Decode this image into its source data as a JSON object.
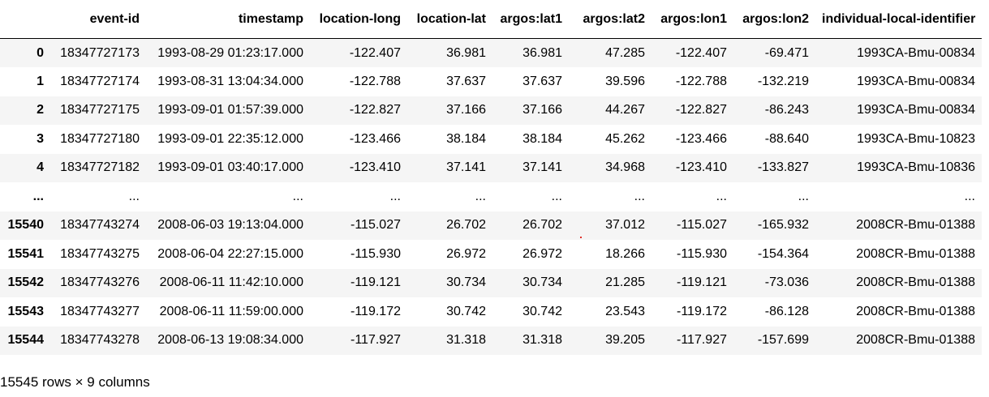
{
  "table": {
    "index_header": "",
    "columns": [
      "event-id",
      "timestamp",
      "location-long",
      "location-lat",
      "argos:lat1",
      "argos:lat2",
      "argos:lon1",
      "argos:lon2",
      "individual-local-identifier"
    ],
    "rows": [
      {
        "index": "0",
        "cells": [
          "18347727173",
          "1993-08-29 01:23:17.000",
          "-122.407",
          "36.981",
          "36.981",
          "47.285",
          "-122.407",
          "-69.471",
          "1993CA-Bmu-00834"
        ]
      },
      {
        "index": "1",
        "cells": [
          "18347727174",
          "1993-08-31 13:04:34.000",
          "-122.788",
          "37.637",
          "37.637",
          "39.596",
          "-122.788",
          "-132.219",
          "1993CA-Bmu-00834"
        ]
      },
      {
        "index": "2",
        "cells": [
          "18347727175",
          "1993-09-01 01:57:39.000",
          "-122.827",
          "37.166",
          "37.166",
          "44.267",
          "-122.827",
          "-86.243",
          "1993CA-Bmu-00834"
        ]
      },
      {
        "index": "3",
        "cells": [
          "18347727180",
          "1993-09-01 22:35:12.000",
          "-123.466",
          "38.184",
          "38.184",
          "45.262",
          "-123.466",
          "-88.640",
          "1993CA-Bmu-10823"
        ]
      },
      {
        "index": "4",
        "cells": [
          "18347727182",
          "1993-09-01 03:40:17.000",
          "-123.410",
          "37.141",
          "37.141",
          "34.968",
          "-123.410",
          "-133.827",
          "1993CA-Bmu-10836"
        ]
      },
      {
        "index": "...",
        "cells": [
          "...",
          "...",
          "...",
          "...",
          "...",
          "...",
          "...",
          "...",
          "..."
        ]
      },
      {
        "index": "15540",
        "cells": [
          "18347743274",
          "2008-06-03 19:13:04.000",
          "-115.027",
          "26.702",
          "26.702",
          "37.012",
          "-115.027",
          "-165.932",
          "2008CR-Bmu-01388"
        ]
      },
      {
        "index": "15541",
        "cells": [
          "18347743275",
          "2008-06-04 22:27:15.000",
          "-115.930",
          "26.972",
          "26.972",
          "18.266",
          "-115.930",
          "-154.364",
          "2008CR-Bmu-01388"
        ]
      },
      {
        "index": "15542",
        "cells": [
          "18347743276",
          "2008-06-11 11:42:10.000",
          "-119.121",
          "30.734",
          "30.734",
          "21.285",
          "-119.121",
          "-73.036",
          "2008CR-Bmu-01388"
        ]
      },
      {
        "index": "15543",
        "cells": [
          "18347743277",
          "2008-06-11 11:59:00.000",
          "-119.172",
          "30.742",
          "30.742",
          "23.543",
          "-119.172",
          "-86.128",
          "2008CR-Bmu-01388"
        ]
      },
      {
        "index": "15544",
        "cells": [
          "18347743278",
          "2008-06-13 19:08:34.000",
          "-117.927",
          "31.318",
          "31.318",
          "39.205",
          "-117.927",
          "-157.699",
          "2008CR-Bmu-01388"
        ]
      }
    ]
  },
  "shape_note": "15545 rows × 9 columns",
  "colors": {
    "stripe": "#f5f5f5",
    "background": "#ffffff",
    "text": "#000000"
  }
}
